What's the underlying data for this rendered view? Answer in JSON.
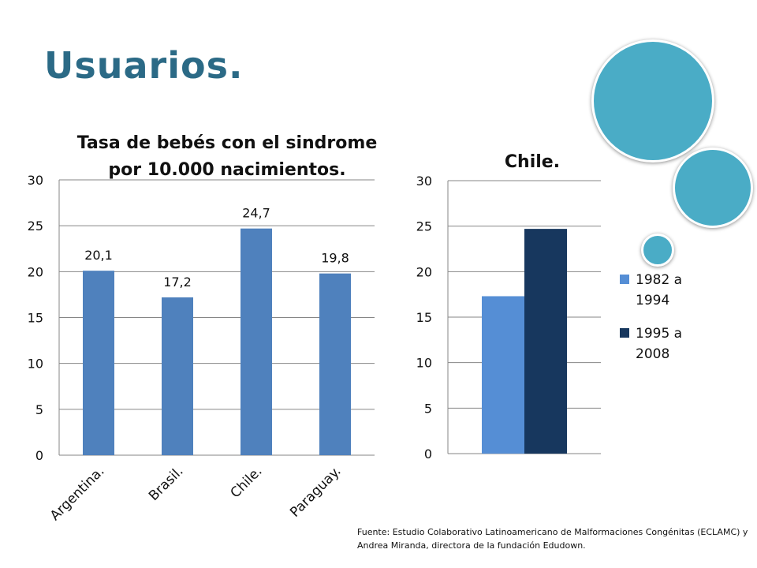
{
  "slide": {
    "title": "Usuarios.",
    "source": "Fuente: Estudio Colaborativo Latinoamericano de Malformaciones Congénitas (ECLAMC) y Andrea Miranda, directora de la fundación Edudown."
  },
  "colors": {
    "title": "#2b6a86",
    "circles": "#4aacc6",
    "bar_main": "#4f81bd",
    "series_1": "#558ed5",
    "series_2": "#17375e"
  },
  "chart_data": [
    {
      "type": "bar",
      "title_lines": [
        "Tasa de bebés con el sindrome",
        "por 10.000 nacimientos."
      ],
      "categories": [
        "Argentina.",
        "Brasil.",
        "Chile.",
        "Paraguay."
      ],
      "values": [
        20.1,
        17.2,
        24.7,
        19.8
      ],
      "data_labels": [
        "20,1",
        "17,2",
        "24,7",
        "19,8"
      ],
      "ylim": [
        0,
        30
      ],
      "yticks": [
        "0",
        "5",
        "10",
        "15",
        "20",
        "25",
        "30"
      ],
      "grid": true
    },
    {
      "type": "bar",
      "title": "Chile.",
      "series": [
        {
          "name": "1982 a 1994",
          "name_lines": [
            "1982 a",
            "1994"
          ],
          "values": [
            17.3
          ]
        },
        {
          "name": "1995 a 2008",
          "name_lines": [
            "1995 a",
            "2008"
          ],
          "values": [
            24.7
          ]
        }
      ],
      "ylim": [
        0,
        30
      ],
      "yticks": [
        "0",
        "5",
        "10",
        "15",
        "20",
        "25",
        "30"
      ],
      "grid": true,
      "legend": "right"
    }
  ]
}
